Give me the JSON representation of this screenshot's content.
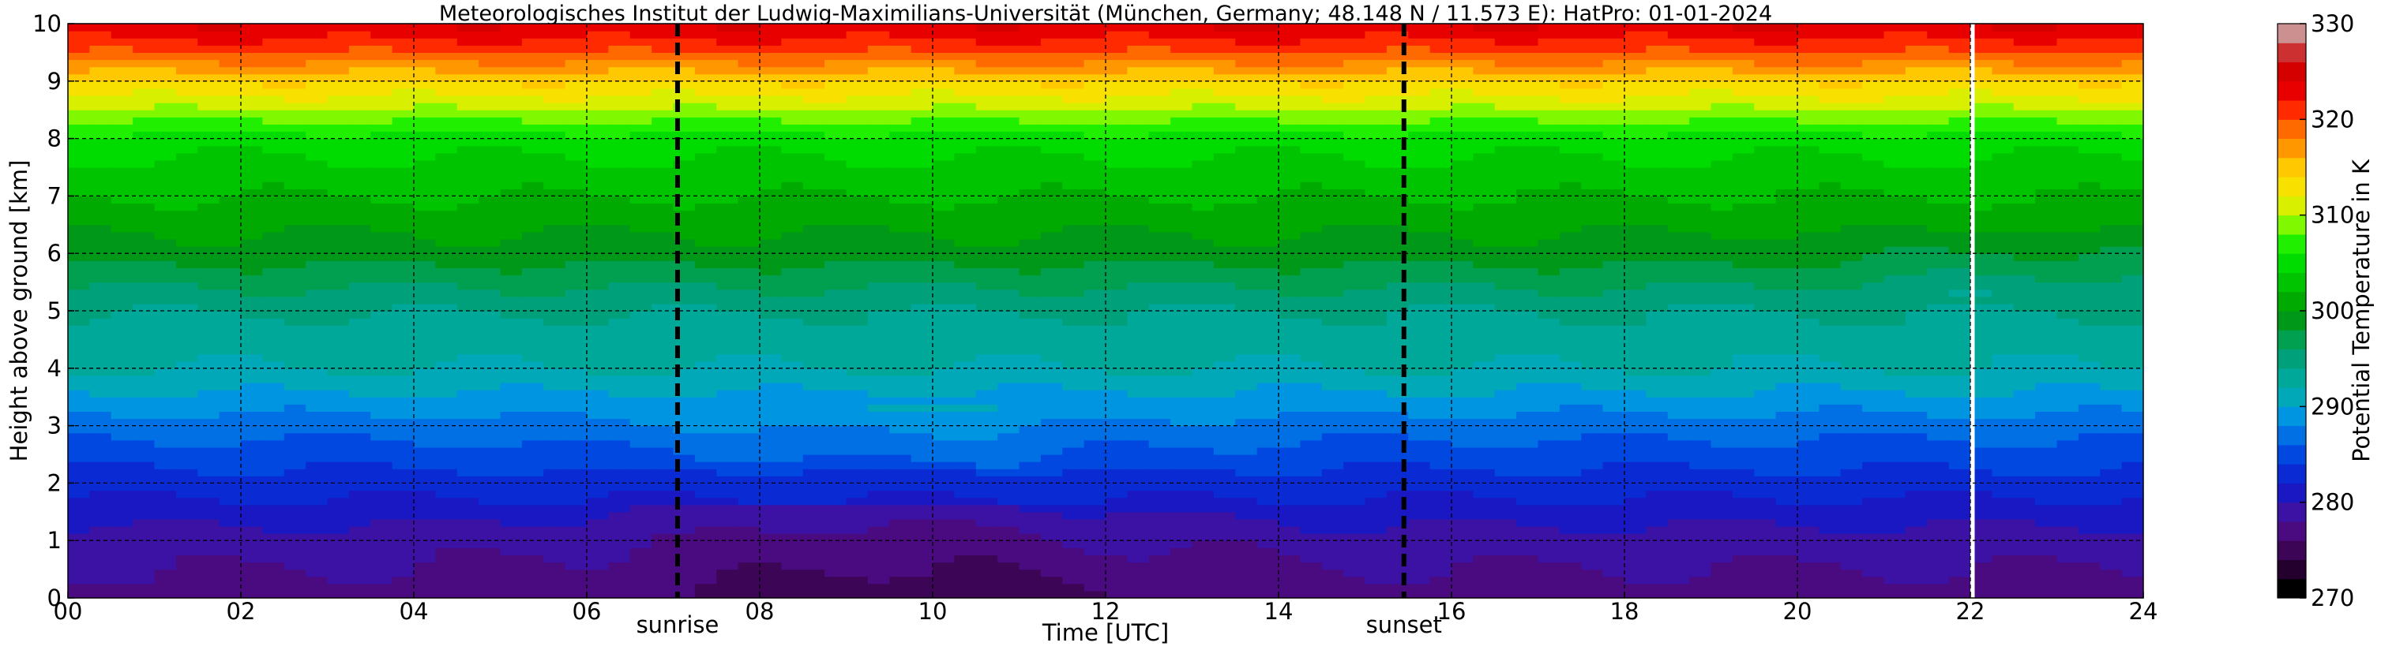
{
  "chart_data": {
    "type": "heatmap",
    "title": "Meteorologisches Institut der Ludwig-Maximilians-Universität (München, Germany; 48.148 N / 11.573 E):    HatPro: 01-01-2024",
    "xlabel": "Time [UTC]",
    "ylabel": "Height above ground [km]",
    "xlim": [
      0,
      24
    ],
    "ylim": [
      0,
      10
    ],
    "x_ticks": [
      "00",
      "02",
      "04",
      "06",
      "08",
      "10",
      "12",
      "14",
      "16",
      "18",
      "20",
      "22",
      "24"
    ],
    "y_ticks": [
      "0",
      "1",
      "2",
      "3",
      "4",
      "5",
      "6",
      "7",
      "8",
      "9",
      "10"
    ],
    "grid": true,
    "colorbar": {
      "label": "Potential Temperature in K",
      "range": [
        270,
        330
      ],
      "ticks": [
        "270",
        "280",
        "290",
        "300",
        "310",
        "320",
        "330"
      ]
    },
    "event_lines": [
      {
        "label": "sunrise",
        "time": 7.05
      },
      {
        "label": "sunset",
        "time": 15.45
      }
    ],
    "data_end_time": 22.0,
    "field_description_by_height": [
      {
        "height_km": 0.0,
        "theta_K": 277
      },
      {
        "height_km": 1.0,
        "theta_K": 279
      },
      {
        "height_km": 2.0,
        "theta_K": 283
      },
      {
        "height_km": 3.0,
        "theta_K": 287
      },
      {
        "height_km": 4.0,
        "theta_K": 292
      },
      {
        "height_km": 5.0,
        "theta_K": 294
      },
      {
        "height_km": 6.0,
        "theta_K": 299
      },
      {
        "height_km": 7.0,
        "theta_K": 302
      },
      {
        "height_km": 8.0,
        "theta_K": 305
      },
      {
        "height_km": 8.5,
        "theta_K": 310
      },
      {
        "height_km": 9.0,
        "theta_K": 314
      },
      {
        "height_km": 9.5,
        "theta_K": 320
      },
      {
        "height_km": 10.0,
        "theta_K": 324
      }
    ]
  }
}
